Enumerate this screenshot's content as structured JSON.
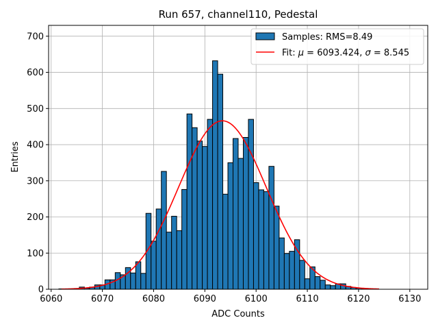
{
  "chart_data": {
    "type": "bar",
    "title": "Run 657, channel110, Pedestal",
    "xlabel": "ADC Counts",
    "ylabel": "Entries",
    "xlim": [
      6059.5,
      6133.5
    ],
    "ylim": [
      0,
      730
    ],
    "xticks": [
      6060,
      6070,
      6080,
      6090,
      6100,
      6110,
      6120,
      6130
    ],
    "yticks": [
      0,
      100,
      200,
      300,
      400,
      500,
      600,
      700
    ],
    "grid": true,
    "legend_position": "top-right",
    "colors": {
      "bar_fill": "#1f77b4",
      "bar_edge": "#000000",
      "fit_line": "#ff0000",
      "grid": "#b0b0b0"
    },
    "histogram": {
      "name": "Samples: RMS=8.49",
      "bin_width": 1,
      "x": [
        6062,
        6063,
        6064,
        6065,
        6066,
        6067,
        6068,
        6069,
        6070,
        6071,
        6072,
        6073,
        6074,
        6075,
        6076,
        6077,
        6078,
        6079,
        6080,
        6081,
        6082,
        6083,
        6084,
        6085,
        6086,
        6087,
        6088,
        6089,
        6090,
        6091,
        6092,
        6093,
        6094,
        6095,
        6096,
        6097,
        6098,
        6099,
        6100,
        6101,
        6102,
        6103,
        6104,
        6105,
        6106,
        6107,
        6108,
        6109,
        6110,
        6111,
        6112,
        6113,
        6114,
        6115,
        6116,
        6117,
        6118,
        6119,
        6120,
        6121,
        6122,
        6123
      ],
      "values": [
        1,
        0,
        1,
        2,
        6,
        3,
        6,
        12,
        12,
        26,
        26,
        46,
        40,
        60,
        45,
        76,
        44,
        210,
        133,
        222,
        326,
        158,
        202,
        162,
        276,
        485,
        447,
        410,
        395,
        470,
        632,
        595,
        263,
        350,
        417,
        362,
        420,
        470,
        295,
        275,
        270,
        340,
        230,
        142,
        99,
        105,
        137,
        80,
        29,
        62,
        35,
        25,
        12,
        10,
        15,
        15,
        8,
        5,
        3,
        2,
        1,
        1
      ]
    },
    "fit": {
      "name": "Fit: μ = 6093.424, σ = 8.545",
      "mu": 6093.424,
      "sigma": 8.545,
      "peak": 466,
      "x_range": [
        6062,
        6124
      ]
    }
  },
  "legend": {
    "histogram_label": "Samples: RMS=8.49",
    "fit_label_prefix": "Fit: ",
    "fit_mu_symbol": "μ",
    "fit_mu_value": " = 6093.424, ",
    "fit_sigma_symbol": "σ",
    "fit_sigma_value": " = 8.545"
  }
}
